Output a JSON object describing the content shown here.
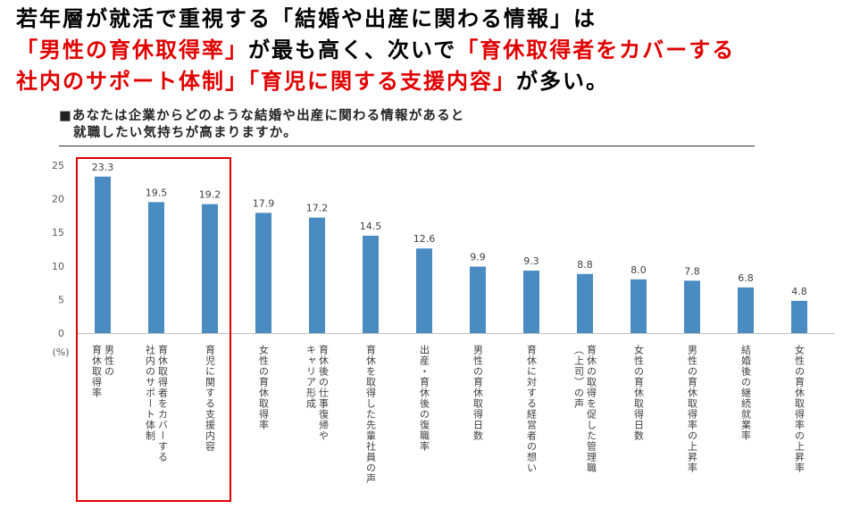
{
  "headline": {
    "line1": "若年層が就活で重視する「結婚や出産に関わる情報」は",
    "line2_red1": "「男性の育休取得率」",
    "line2_black": "が最も高く、次いで",
    "line2_red2": "「育休取得者をカバーする",
    "line3_red": "社内のサポート体制」「育児に関する支援内容」",
    "line3_black": "が多い。"
  },
  "question": {
    "line1": "■あなたは企業からどのような結婚や出産に関わる情報があると",
    "line2": "就職したい気持ちが高まりますか。"
  },
  "colors": {
    "bar": "#4a8bc2",
    "highlight": "#e00000",
    "axis": "#bfbfbf"
  },
  "chart_data": {
    "type": "bar",
    "unit_label": "(%)",
    "ylim": [
      0,
      25
    ],
    "yticks": [
      0,
      5,
      10,
      15,
      20,
      25
    ],
    "grid": false,
    "highlighted_categories": [
      0,
      1,
      2
    ],
    "categories": [
      [
        "男性の",
        "育休取得率"
      ],
      [
        "育休取得者をカバーする",
        "社内のサポート体制"
      ],
      [
        "育児に関する支援内容"
      ],
      [
        "女性の育休取得率"
      ],
      [
        "育休後の仕事復帰や",
        "キャリア形成"
      ],
      [
        "育休を取得した先輩社員の声"
      ],
      [
        "出産・育休後の復職率"
      ],
      [
        "男性の育休取得日数"
      ],
      [
        "育休に対する経営者の想い"
      ],
      [
        "育休の取得を促した管理職",
        "（上司）の声"
      ],
      [
        "女性の育休取得日数"
      ],
      [
        "男性の育休取得率の上昇率"
      ],
      [
        "結婚後の継続就業率"
      ],
      [
        "女性の育休取得率の上昇率"
      ]
    ],
    "values": [
      23.3,
      19.5,
      19.2,
      17.9,
      17.2,
      14.5,
      12.6,
      9.9,
      9.3,
      8.8,
      8.0,
      7.8,
      6.8,
      4.8
    ]
  }
}
